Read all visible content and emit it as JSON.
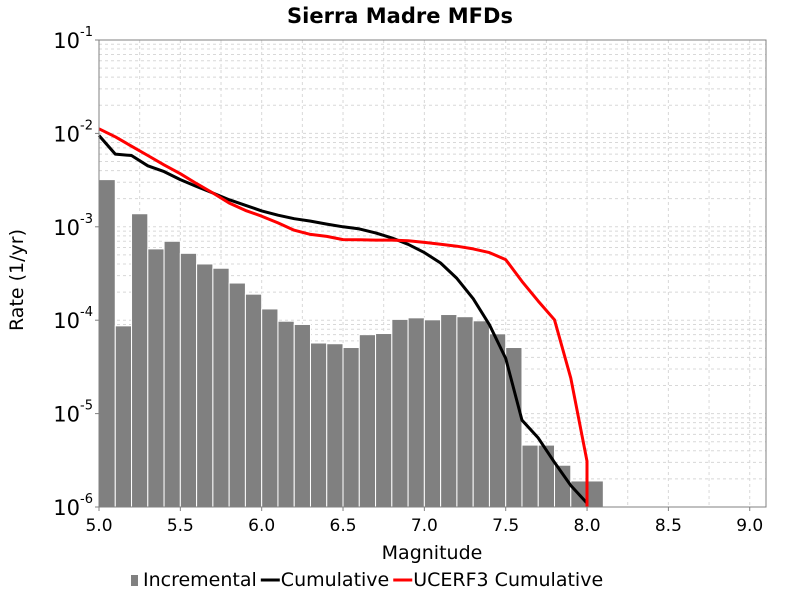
{
  "chart_data": {
    "type": "bar+line",
    "title": "Sierra Madre MFDs",
    "xlabel": "Magnitude",
    "ylabel": "Rate (1/yr)",
    "xlim": [
      5.0,
      9.1
    ],
    "ylim": [
      1e-06,
      0.1
    ],
    "yscale": "log",
    "grid": true,
    "legend_position": "bottom",
    "x_ticks": [
      "5.0",
      "5.5",
      "6.0",
      "6.5",
      "7.0",
      "7.5",
      "8.0",
      "8.5",
      "9.0"
    ],
    "y_ticks": [
      {
        "base": "10",
        "exp": "-1"
      },
      {
        "base": "10",
        "exp": "-2"
      },
      {
        "base": "10",
        "exp": "-3"
      },
      {
        "base": "10",
        "exp": "-4"
      },
      {
        "base": "10",
        "exp": "-5"
      },
      {
        "base": "10",
        "exp": "-6"
      }
    ],
    "bar_width": 0.1,
    "series": [
      {
        "name": "Incremental",
        "type": "bar",
        "color": "#808080",
        "x": [
          5.05,
          5.15,
          5.25,
          5.35,
          5.45,
          5.55,
          5.65,
          5.75,
          5.85,
          5.95,
          6.05,
          6.15,
          6.25,
          6.35,
          6.45,
          6.55,
          6.65,
          6.75,
          6.85,
          6.95,
          7.05,
          7.15,
          7.25,
          7.35,
          7.45,
          7.55,
          7.65,
          7.75,
          7.85,
          7.95,
          8.05
        ],
        "values": [
          0.0032,
          8.7e-05,
          0.00138,
          0.00058,
          0.0007,
          0.00052,
          0.0004,
          0.00036,
          0.00025,
          0.00019,
          0.000132,
          9.75e-05,
          9e-05,
          5.7e-05,
          5.6e-05,
          5.1e-05,
          7e-05,
          7.2e-05,
          0.000102,
          0.000106,
          0.000101,
          0.000115,
          0.000109,
          9.85e-05,
          7.15e-05,
          5.1e-05,
          4.6e-06,
          4.6e-06,
          2.8e-06,
          1.9e-06,
          1.9e-06
        ]
      },
      {
        "name": "Cumulative",
        "type": "line",
        "color": "#000000",
        "x": [
          5.0,
          5.1,
          5.2,
          5.3,
          5.4,
          5.5,
          5.6,
          5.7,
          5.8,
          5.9,
          6.0,
          6.1,
          6.2,
          6.3,
          6.4,
          6.5,
          6.6,
          6.7,
          6.8,
          6.9,
          7.0,
          7.1,
          7.2,
          7.3,
          7.4,
          7.5,
          7.6,
          7.7,
          7.8,
          7.9,
          8.0
        ],
        "values": [
          0.0095,
          0.006,
          0.0058,
          0.0045,
          0.0039,
          0.0032,
          0.0027,
          0.0023,
          0.00195,
          0.0017,
          0.00148,
          0.00133,
          0.00122,
          0.00115,
          0.00107,
          0.001,
          0.00095,
          0.00086,
          0.00076,
          0.00065,
          0.00053,
          0.00041,
          0.00028,
          0.00017,
          8.95e-05,
          3.9e-05,
          8.5e-06,
          5.5e-06,
          3e-06,
          1.7e-06,
          1.1e-06
        ]
      },
      {
        "name": "UCERF3 Cumulative",
        "type": "line",
        "color": "#ff0000",
        "x": [
          5.0,
          5.1,
          5.2,
          5.3,
          5.4,
          5.5,
          5.6,
          5.7,
          5.8,
          5.9,
          6.0,
          6.1,
          6.2,
          6.3,
          6.4,
          6.5,
          6.6,
          6.7,
          6.8,
          6.9,
          7.0,
          7.1,
          7.2,
          7.3,
          7.4,
          7.5,
          7.6,
          7.7,
          7.8,
          7.9,
          8.0,
          8.0
        ],
        "values": [
          0.0112,
          0.0092,
          0.0073,
          0.0058,
          0.0046,
          0.0037,
          0.0029,
          0.0023,
          0.0018,
          0.0015,
          0.0013,
          0.0011,
          0.00092,
          0.00083,
          0.00079,
          0.00073,
          0.000725,
          0.00072,
          0.00072,
          0.00071,
          0.00068,
          0.00065,
          0.00062,
          0.00058,
          0.00053,
          0.000445,
          0.00026,
          0.00016,
          0.000101,
          2.4e-05,
          3.1e-06,
          1e-06
        ]
      }
    ]
  }
}
